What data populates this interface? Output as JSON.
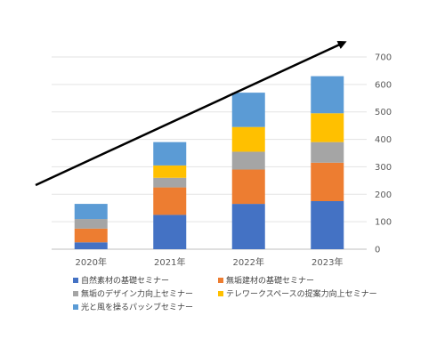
{
  "chart_data": {
    "type": "bar",
    "stacked": true,
    "categories": [
      "2020年",
      "2021年",
      "2022年",
      "2023年"
    ],
    "series": [
      {
        "name": "自然素材の基礎セミナー",
        "color": "#4472C4",
        "values": [
          25,
          125,
          165,
          175
        ]
      },
      {
        "name": "無垢建材の基礎セミナー",
        "color": "#ED7D31",
        "values": [
          50,
          100,
          125,
          140
        ]
      },
      {
        "name": "無垢のデザイン力向上セミナー",
        "color": "#A5A5A5",
        "values": [
          35,
          35,
          65,
          75
        ]
      },
      {
        "name": "テレワークスペースの提案力向上セミナー",
        "color": "#FFC000",
        "values": [
          0,
          45,
          90,
          105
        ]
      },
      {
        "name": "光と風を操るパッシブセミナー",
        "color": "#5B9BD5",
        "values": [
          55,
          85,
          125,
          135
        ]
      }
    ],
    "yaxis": {
      "ticks": [
        "0",
        "100",
        "200",
        "300",
        "400",
        "500",
        "600",
        "700"
      ],
      "range": [
        0,
        700
      ],
      "position": "right"
    },
    "grid": true,
    "legend": "bottom",
    "annotation": "upward trend arrow"
  }
}
